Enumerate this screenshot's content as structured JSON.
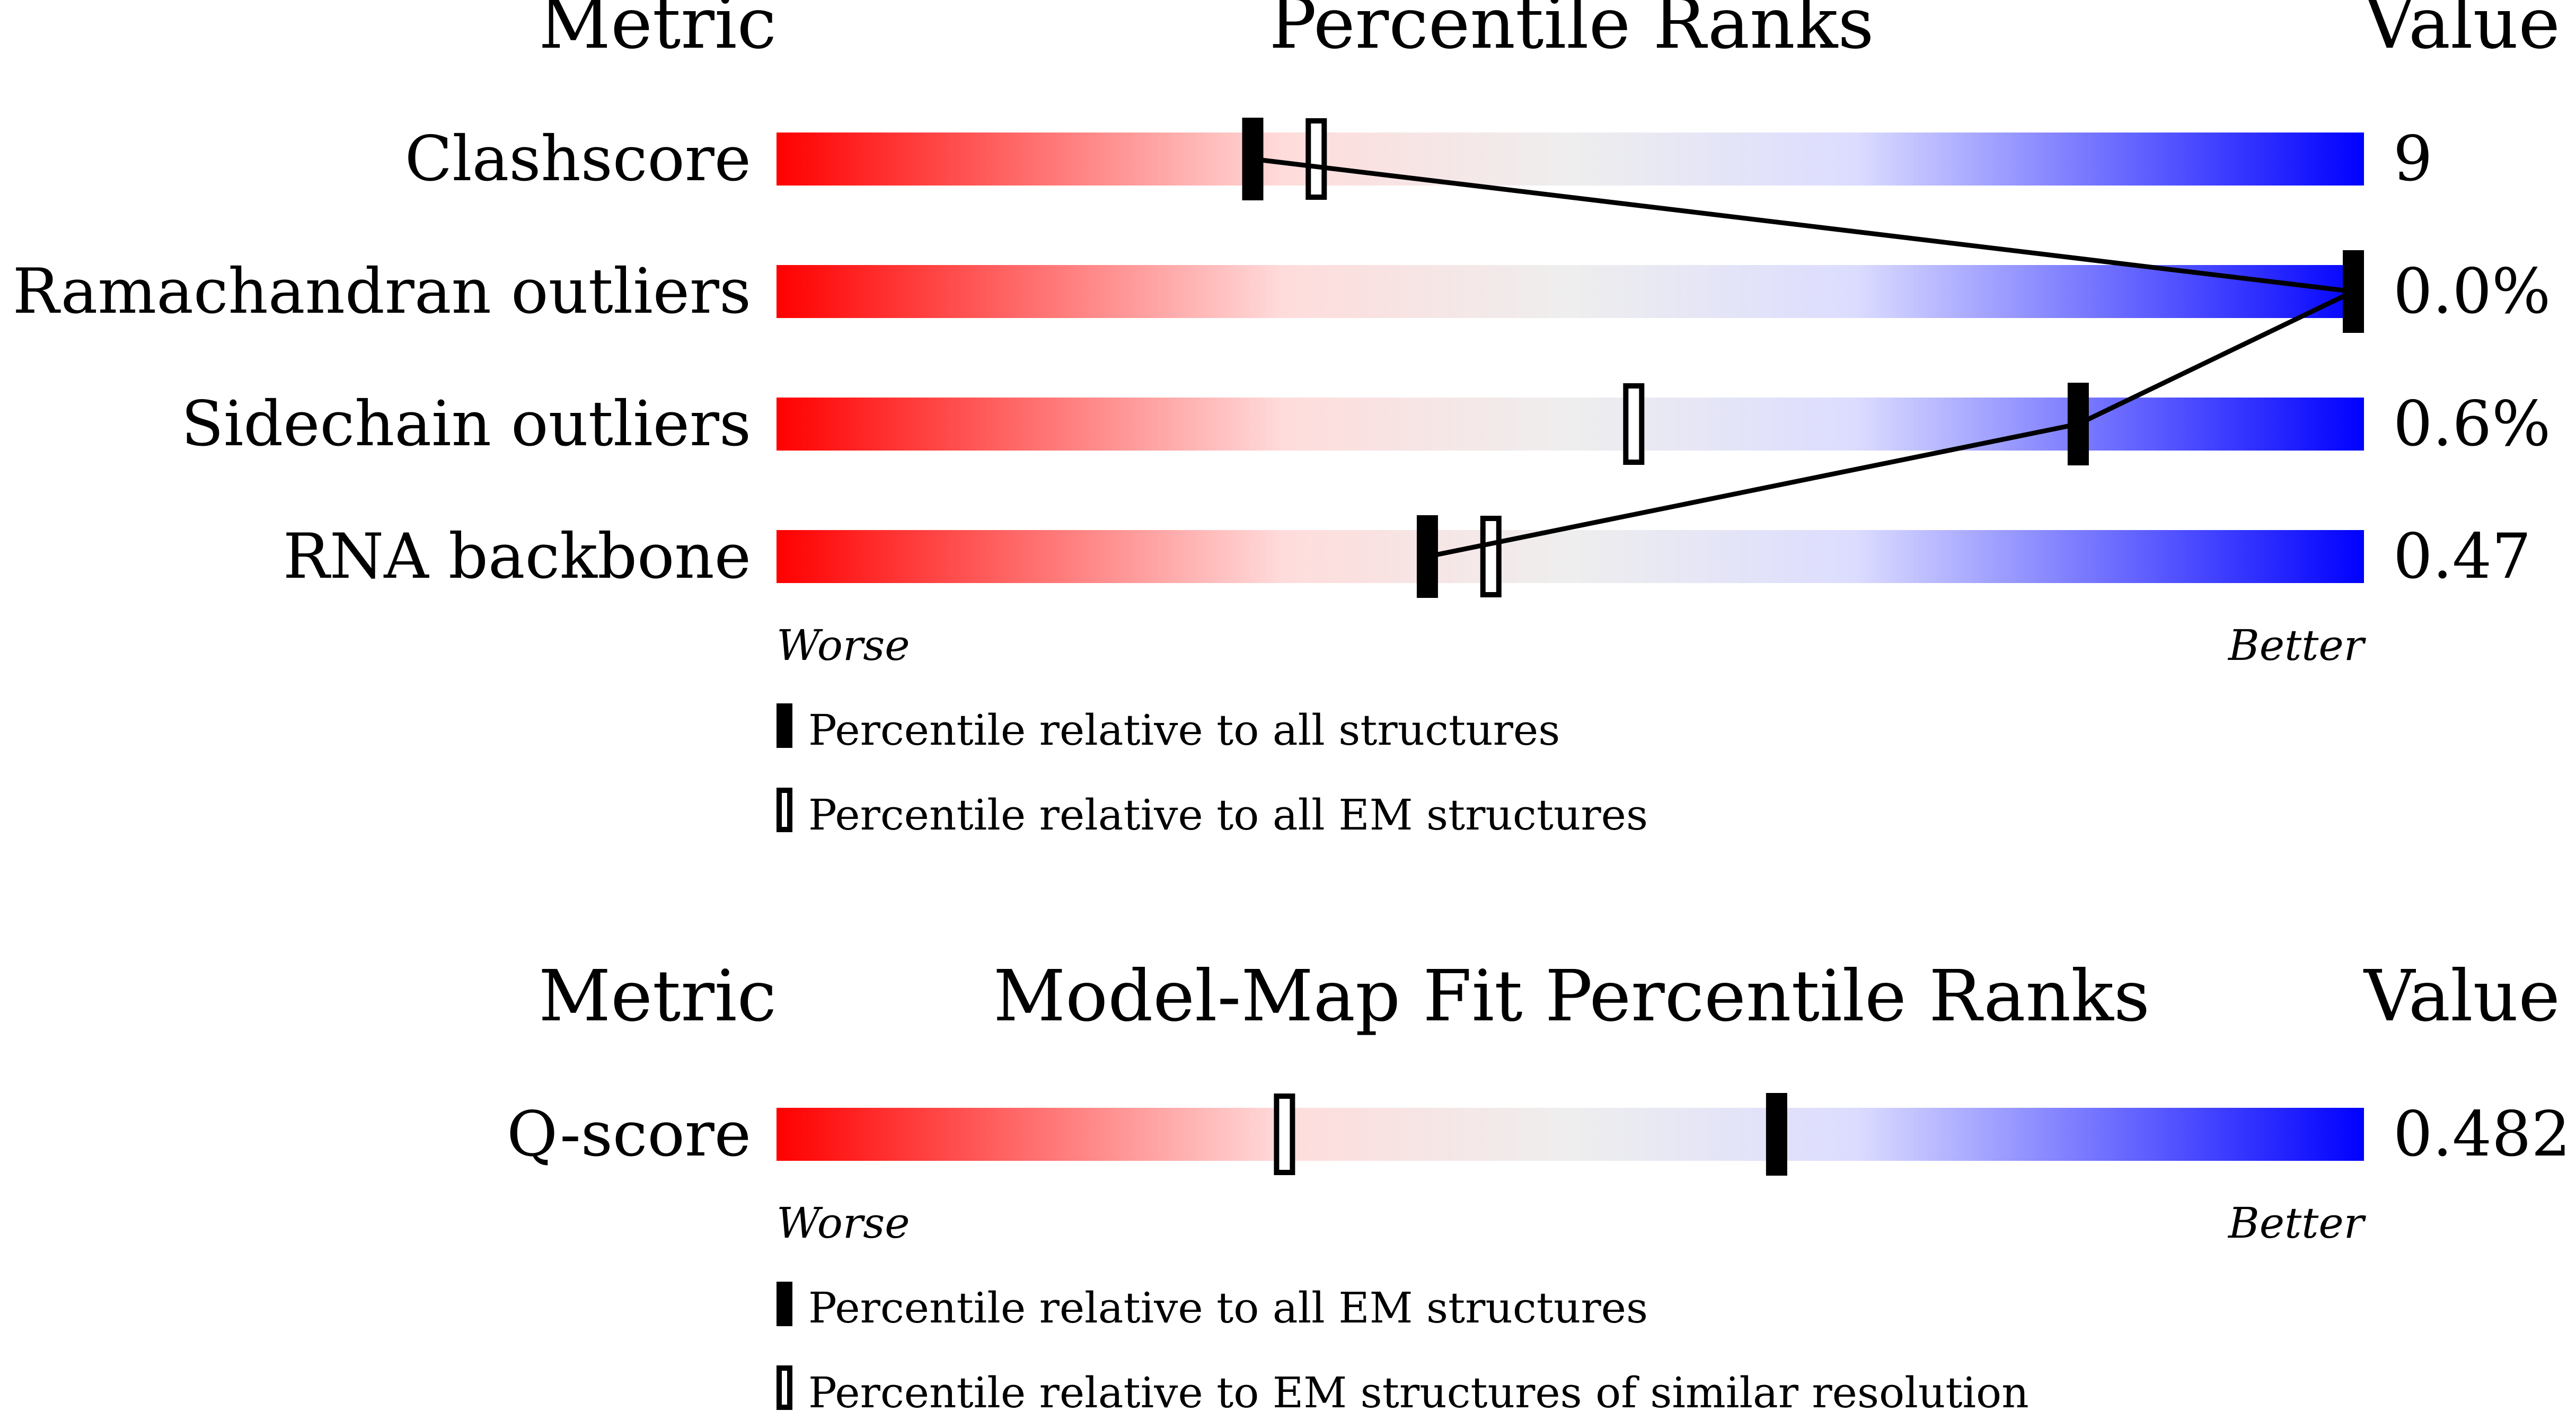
{
  "chart_data": [
    {
      "type": "percentile-bar",
      "headers": {
        "metric": "Metric",
        "title": "Percentile Ranks",
        "value": "Value"
      },
      "axis": {
        "worse": "Worse",
        "better": "Better",
        "range": [
          0,
          100
        ]
      },
      "rows": [
        {
          "metric": "Clashscore",
          "value": "9",
          "percentile_all": 30,
          "percentile_em": 34
        },
        {
          "metric": "Ramachandran outliers",
          "value": "0.0%",
          "percentile_all": 100,
          "percentile_em": 100
        },
        {
          "metric": "Sidechain outliers",
          "value": "0.6%",
          "percentile_all": 82,
          "percentile_em": 54
        },
        {
          "metric": "RNA backbone",
          "value": "0.47",
          "percentile_all": 41,
          "percentile_em": 45
        }
      ],
      "legend": {
        "filled": "Percentile relative to all structures",
        "open": "Percentile relative to all EM structures"
      }
    },
    {
      "type": "percentile-bar",
      "headers": {
        "metric": "Metric",
        "title": "Model-Map Fit Percentile Ranks",
        "value": "Value"
      },
      "axis": {
        "worse": "Worse",
        "better": "Better",
        "range": [
          0,
          100
        ]
      },
      "rows": [
        {
          "metric": "Q-score",
          "value": "0.482",
          "percentile_all": 63,
          "percentile_em": 32
        }
      ],
      "legend": {
        "filled": "Percentile relative to all EM structures",
        "open": "Percentile relative to EM structures of similar resolution"
      }
    }
  ]
}
